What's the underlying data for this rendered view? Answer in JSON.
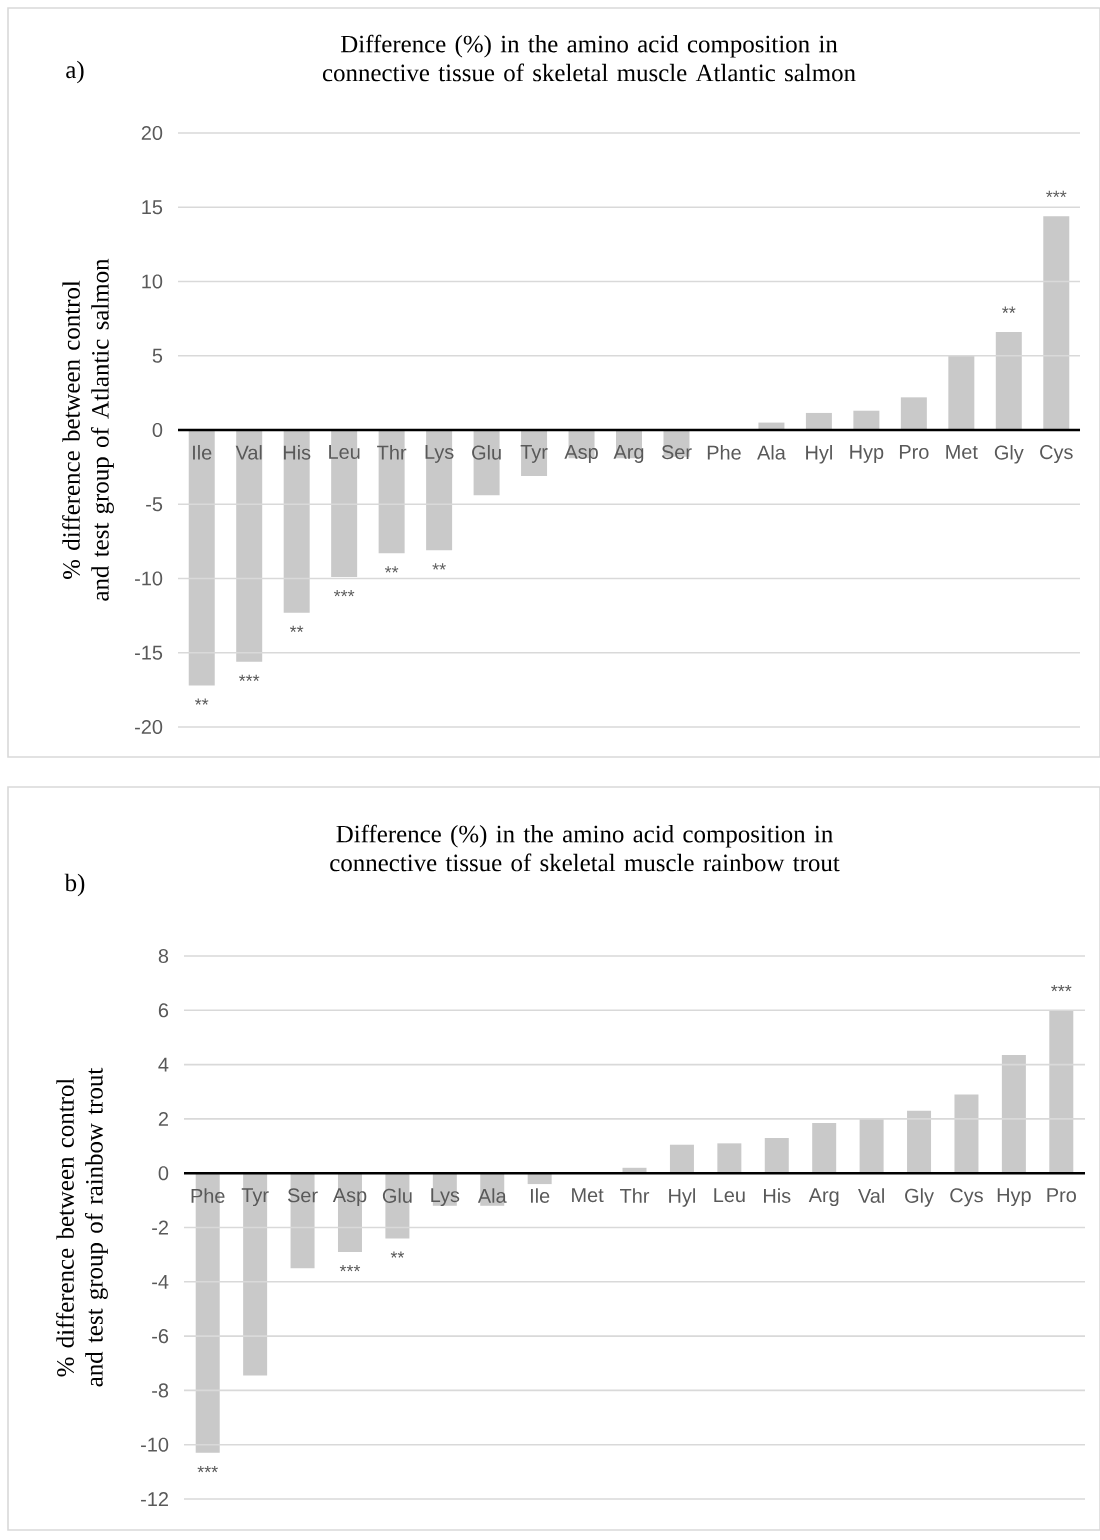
{
  "chart_data": [
    {
      "type": "bar",
      "title": "Difference (%) in the amino acid composition in connective tissue of skeletal muscle Atlantic salmon",
      "ylabel": "% difference between control and test group of Atlantic salmon",
      "color": "#c9c9c9",
      "grid": "y",
      "ylim": [
        -20,
        20
      ],
      "yticks": [
        -20,
        -15,
        -10,
        -5,
        0,
        5,
        10,
        15,
        20
      ],
      "categories": [
        "Ile",
        "Val",
        "His",
        "Leu",
        "Thr",
        "Lys",
        "Glu",
        "Tyr",
        "Asp",
        "Arg",
        "Ser",
        "Phe",
        "Ala",
        "Hyl",
        "Hyp",
        "Pro",
        "Met",
        "Gly",
        "Cys"
      ],
      "values": [
        -17.2,
        -15.6,
        -12.3,
        -9.9,
        -8.3,
        -8.1,
        -4.4,
        -3.1,
        -1.9,
        -1.9,
        -1.8,
        0,
        0.5,
        1.15,
        1.3,
        2.2,
        5.0,
        6.6,
        14.4
      ],
      "annotations": [
        "a)",
        {
          "text": "**",
          "x": "Ile",
          "y": -17.2
        },
        {
          "text": "***",
          "x": "Val",
          "y": -15.6
        },
        {
          "text": "**",
          "x": "His",
          "y": -12.3
        },
        {
          "text": "***",
          "x": "Leu",
          "y": -9.9
        },
        {
          "text": "**",
          "x": "Thr",
          "y": -8.3
        },
        {
          "text": "**",
          "x": "Lys",
          "y": -8.1
        },
        {
          "text": "**",
          "x": "Gly",
          "y": 6.6
        },
        {
          "text": "***",
          "x": "Cys",
          "y": 14.4
        }
      ]
    },
    {
      "type": "bar",
      "title": "Difference (%) in the amino acid composition in connective tissue of skeletal muscle rainbow trout",
      "ylabel": "% difference between control and test group of rainbow trout",
      "color": "#c9c9c9",
      "grid": "y",
      "ylim": [
        -12,
        8
      ],
      "yticks": [
        -12,
        -10,
        -8,
        -6,
        -4,
        -2,
        0,
        2,
        4,
        6,
        8
      ],
      "categories": [
        "Phe",
        "Tyr",
        "Ser",
        "Asp",
        "Glu",
        "Lys",
        "Ala",
        "Ile",
        "Met",
        "Thr",
        "Hyl",
        "Leu",
        "His",
        "Arg",
        "Val",
        "Gly",
        "Cys",
        "Hyp",
        "Pro"
      ],
      "values": [
        -10.3,
        -7.45,
        -3.5,
        -2.9,
        -2.4,
        -1.2,
        -1.2,
        -0.4,
        0,
        0.2,
        1.05,
        1.1,
        1.3,
        1.85,
        2.0,
        2.3,
        2.9,
        4.35,
        6.0
      ],
      "annotations": [
        "b)",
        {
          "text": "***",
          "x": "Phe",
          "y": -10.3
        },
        {
          "text": "***",
          "x": "Asp",
          "y": -2.9
        },
        {
          "text": "**",
          "x": "Glu",
          "y": -2.4
        },
        {
          "text": "***",
          "x": "Pro",
          "y": 6.0
        }
      ]
    }
  ]
}
